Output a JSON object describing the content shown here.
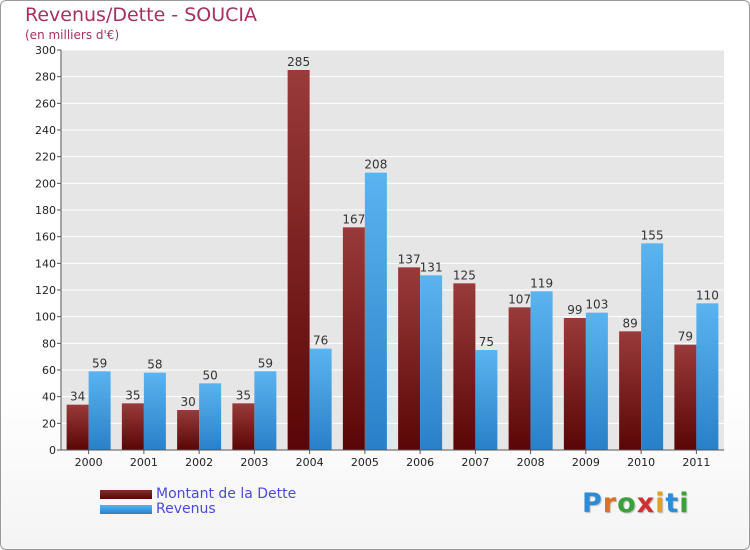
{
  "header": {
    "title": "Revenus/Dette - SOUCIA",
    "subtitle": "(en milliers d'€)"
  },
  "legend": {
    "debt_label": "Montant de la Dette",
    "revenue_label": "Revenus"
  },
  "logo": {
    "letters": [
      "P",
      "r",
      "o",
      "x",
      "i",
      "t",
      "i"
    ],
    "colors": [
      "#2e8bd6",
      "#e07020",
      "#3aa03a",
      "#d03030",
      "#e0a020",
      "#2e8bd6",
      "#3aa03a"
    ]
  },
  "colors": {
    "debt": "#7a1a1a",
    "revenue": "#3d9be0"
  },
  "chart_data": {
    "type": "bar",
    "title": "Revenus/Dette - SOUCIA",
    "subtitle": "(en milliers d'€)",
    "categories": [
      "2000",
      "2001",
      "2002",
      "2003",
      "2004",
      "2005",
      "2006",
      "2007",
      "2008",
      "2009",
      "2010",
      "2011"
    ],
    "series": [
      {
        "name": "Montant de la Dette",
        "values": [
          34,
          35,
          30,
          35,
          285,
          167,
          137,
          125,
          107,
          99,
          89,
          79
        ]
      },
      {
        "name": "Revenus",
        "values": [
          59,
          58,
          50,
          59,
          76,
          208,
          131,
          75,
          119,
          103,
          155,
          110
        ]
      }
    ],
    "ylim": [
      0,
      300
    ],
    "yticks": [
      0,
      20,
      40,
      60,
      80,
      100,
      120,
      140,
      160,
      180,
      200,
      220,
      240,
      260,
      280,
      300
    ],
    "grid": true,
    "legend_position": "bottom-left"
  }
}
